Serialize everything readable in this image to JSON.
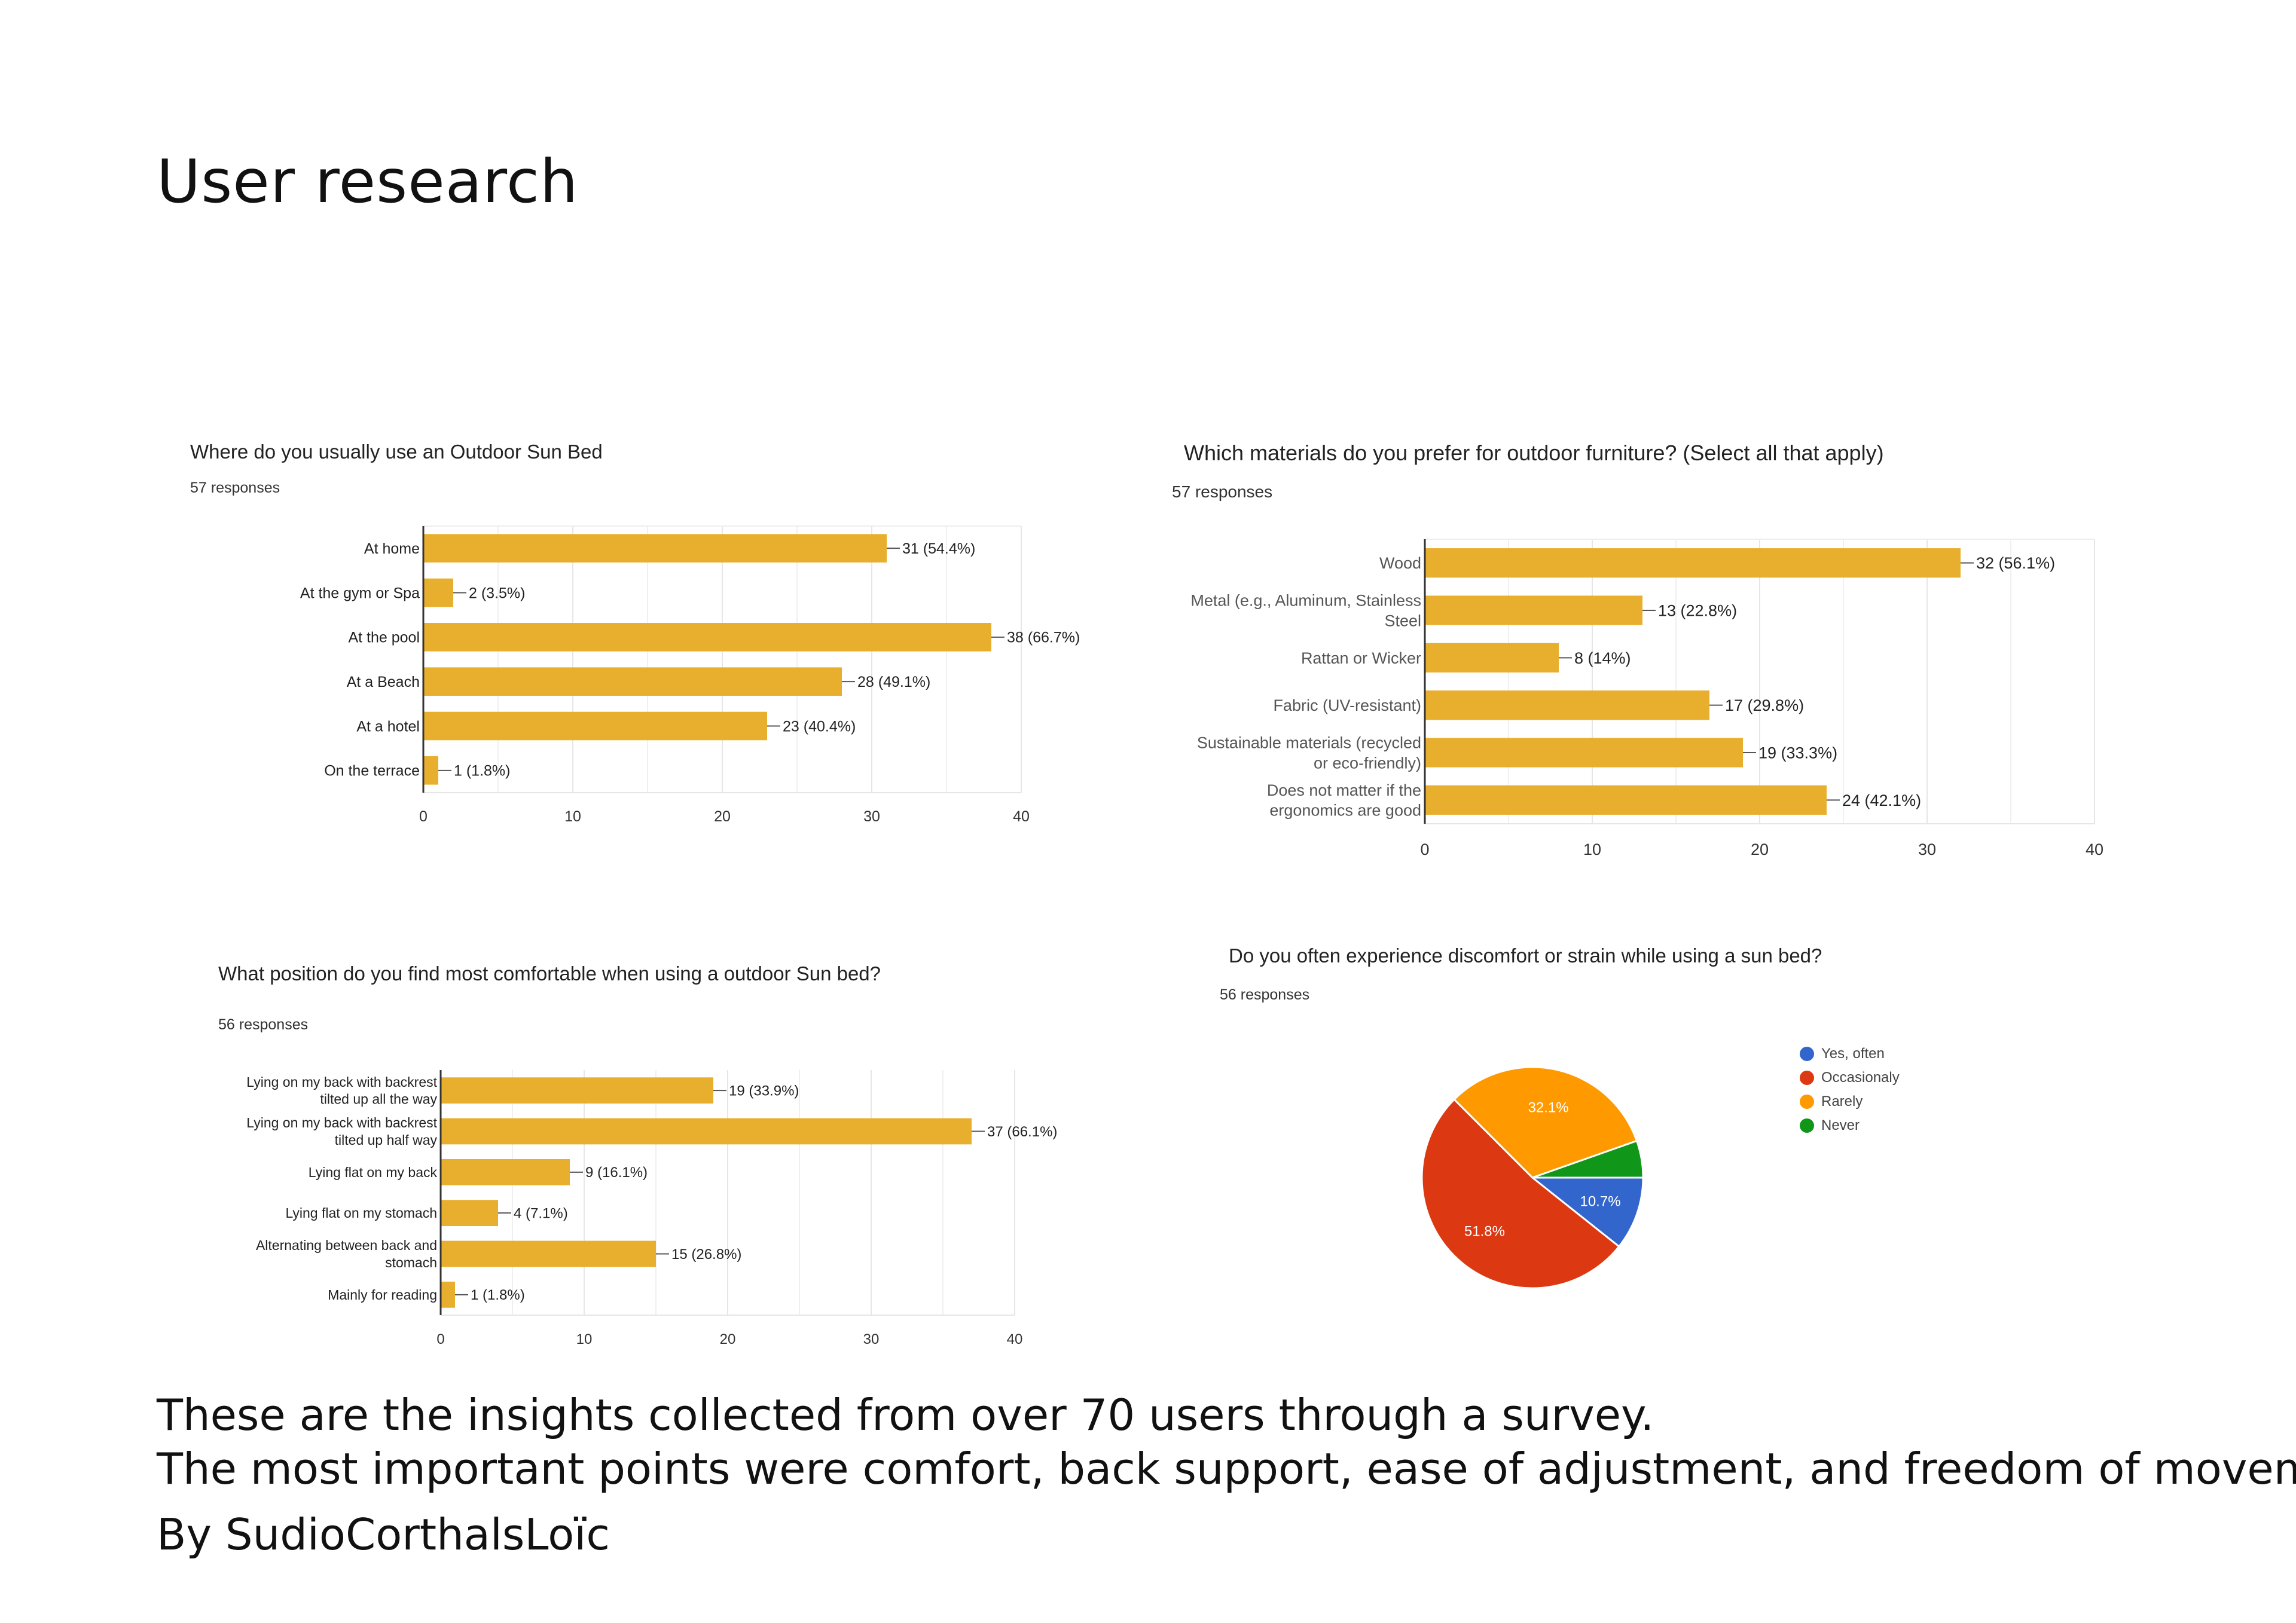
{
  "page_title": "User research",
  "footer": {
    "line1": "These are the insights collected from over 70 users through a survey.",
    "line2": "The most important points were comfort, back support, ease of adjustment, and freedom of movement.",
    "byline": "By SudioCorthalsLoïc"
  },
  "colors": {
    "bar": "#E8AF2E",
    "pie_blue": "#3366CC",
    "pie_red": "#DC3912",
    "pie_orange": "#FF9900",
    "pie_green": "#109618"
  },
  "chart_data": [
    {
      "type": "bar",
      "orientation": "horizontal",
      "title": "Where do you usually use an Outdoor Sun Bed",
      "responses": "57 responses",
      "categories": [
        "At home",
        "At the gym or Spa",
        "At the pool",
        "At a Beach",
        "At a hotel",
        "On the terrace"
      ],
      "values": [
        31,
        2,
        38,
        28,
        23,
        1
      ],
      "value_labels": [
        "31 (54.4%)",
        "2 (3.5%)",
        "38 (66.7%)",
        "28 (49.1%)",
        "23 (40.4%)",
        "1 (1.8%)"
      ],
      "xlim": [
        0,
        40
      ],
      "xticks": [
        "0",
        "10",
        "20",
        "30",
        "40"
      ],
      "grid": true
    },
    {
      "type": "bar",
      "orientation": "horizontal",
      "title": "Which materials do you prefer for outdoor furniture? (Select all that apply)",
      "responses": "57 responses",
      "categories": [
        [
          "Wood"
        ],
        [
          "Metal (e.g., Aluminum, Stainless",
          "Steel"
        ],
        [
          "Rattan or Wicker"
        ],
        [
          "Fabric (UV-resistant)"
        ],
        [
          "Sustainable materials (recycled",
          "or eco-friendly)"
        ],
        [
          "Does not matter if the",
          "ergonomics are good"
        ]
      ],
      "values": [
        32,
        13,
        8,
        17,
        19,
        24
      ],
      "value_labels": [
        "32 (56.1%)",
        "13 (22.8%)",
        "8 (14%)",
        "17 (29.8%)",
        "19 (33.3%)",
        "24 (42.1%)"
      ],
      "xlim": [
        0,
        40
      ],
      "xticks": [
        "0",
        "10",
        "20",
        "30",
        "40"
      ],
      "grid": true
    },
    {
      "type": "bar",
      "orientation": "horizontal",
      "title": "What position do you find most comfortable when using a outdoor Sun bed?",
      "responses": "56 responses",
      "categories": [
        [
          "Lying on my back with backrest",
          "tilted up all the way"
        ],
        [
          "Lying on my back with backrest",
          "tilted up half way"
        ],
        [
          "Lying flat on my back"
        ],
        [
          "Lying flat on my stomach"
        ],
        [
          "Alternating between back and",
          "stomach"
        ],
        [
          "Mainly for reading"
        ]
      ],
      "values": [
        19,
        37,
        9,
        4,
        15,
        1
      ],
      "value_labels": [
        "19 (33.9%)",
        "37 (66.1%)",
        "9 (16.1%)",
        "4 (7.1%)",
        "15 (26.8%)",
        "1 (1.8%)"
      ],
      "xlim": [
        0,
        40
      ],
      "xticks": [
        "0",
        "10",
        "20",
        "30",
        "40"
      ],
      "grid": true
    },
    {
      "type": "pie",
      "title": "Do you often experience discomfort or strain while using a sun bed?",
      "responses": "56 responses",
      "slices": [
        {
          "label": "Yes, often",
          "value": 10.7,
          "display": "10.7%",
          "color": "#3366CC"
        },
        {
          "label": "Occasionaly",
          "value": 51.8,
          "display": "51.8%",
          "color": "#DC3912"
        },
        {
          "label": "Rarely",
          "value": 32.1,
          "display": "32.1%",
          "color": "#FF9900"
        },
        {
          "label": "Never",
          "value": 5.4,
          "display": "",
          "color": "#109618"
        }
      ],
      "legend_position": "right"
    }
  ]
}
